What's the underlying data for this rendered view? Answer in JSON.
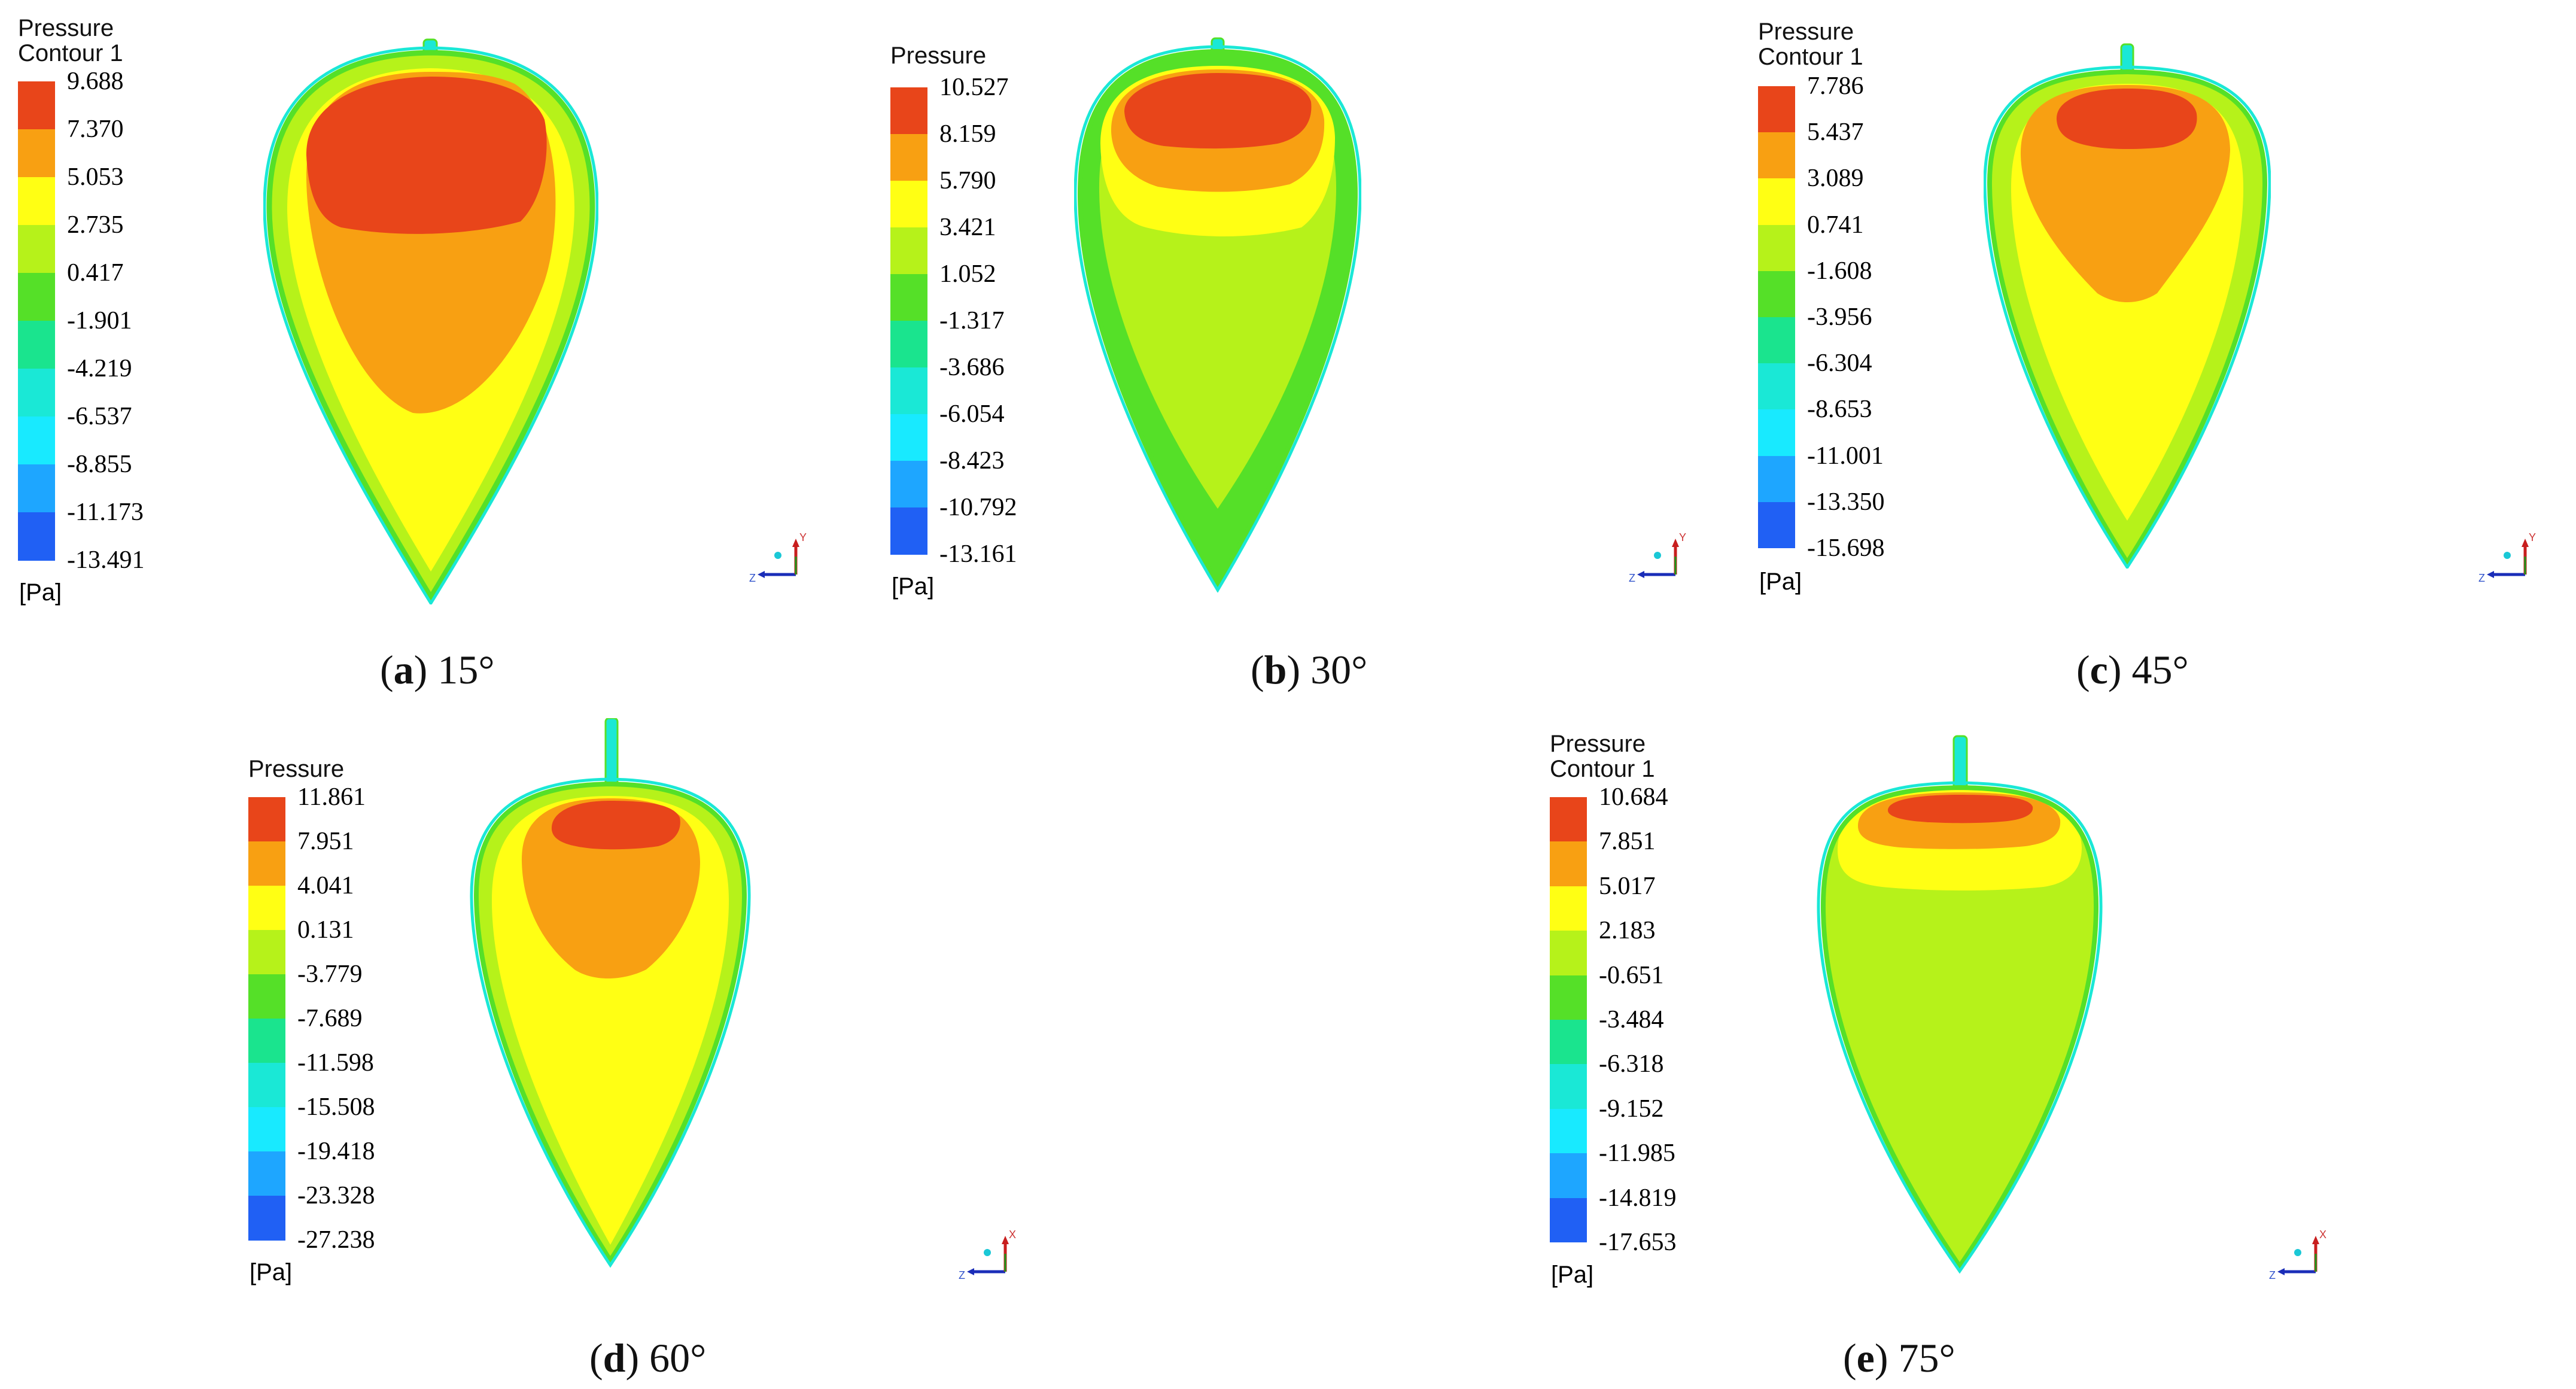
{
  "colors": [
    "#e8451a",
    "#f8a012",
    "#ffff14",
    "#b6f21a",
    "#55e028",
    "#1ae48e",
    "#1ae8d6",
    "#18eaff",
    "#1ea6ff",
    "#2060f4"
  ],
  "panels": [
    {
      "id": "a",
      "legend_title_lines": [
        "Pressure",
        "Contour 1"
      ],
      "ticks": [
        "9.688",
        "7.370",
        "5.053",
        "2.735",
        "0.417",
        "-1.901",
        "-4.219",
        "-6.537",
        "-8.855",
        "-11.173",
        "-13.491"
      ],
      "unit": "[Pa]",
      "caption_letter": "a",
      "caption_angle": "15°",
      "axis_labels": {
        "horizontal": "Z",
        "vertical": "Y"
      }
    },
    {
      "id": "b",
      "legend_title_lines": [
        "Pressure"
      ],
      "ticks": [
        "10.527",
        "8.159",
        "5.790",
        "3.421",
        "1.052",
        "-1.317",
        "-3.686",
        "-6.054",
        "-8.423",
        "-10.792",
        "-13.161"
      ],
      "unit": "[Pa]",
      "caption_letter": "b",
      "caption_angle": "30°",
      "axis_labels": {
        "horizontal": "Z",
        "vertical": "Y"
      }
    },
    {
      "id": "c",
      "legend_title_lines": [
        "Pressure",
        "Contour 1"
      ],
      "ticks": [
        "7.786",
        "5.437",
        "3.089",
        "0.741",
        "-1.608",
        "-3.956",
        "-6.304",
        "-8.653",
        "-11.001",
        "-13.350",
        "-15.698"
      ],
      "unit": "[Pa]",
      "caption_letter": "c",
      "caption_angle": "45°",
      "axis_labels": {
        "horizontal": "Z",
        "vertical": "Y"
      }
    },
    {
      "id": "d",
      "legend_title_lines": [
        "Pressure"
      ],
      "ticks": [
        "11.861",
        "7.951",
        "4.041",
        "0.131",
        "-3.779",
        "-7.689",
        "-11.598",
        "-15.508",
        "-19.418",
        "-23.328",
        "-27.238"
      ],
      "unit": "[Pa]",
      "caption_letter": "d",
      "caption_angle": "60°",
      "axis_labels": {
        "horizontal": "Z",
        "vertical": "X"
      }
    },
    {
      "id": "e",
      "legend_title_lines": [
        "Pressure",
        "Contour 1"
      ],
      "ticks": [
        "10.684",
        "7.851",
        "5.017",
        "2.183",
        "-0.651",
        "-3.484",
        "-6.318",
        "-9.152",
        "-11.985",
        "-14.819",
        "-17.653"
      ],
      "unit": "[Pa]",
      "caption_letter": "e",
      "caption_angle": "75°",
      "axis_labels": {
        "horizontal": "Z",
        "vertical": "X"
      }
    }
  ]
}
